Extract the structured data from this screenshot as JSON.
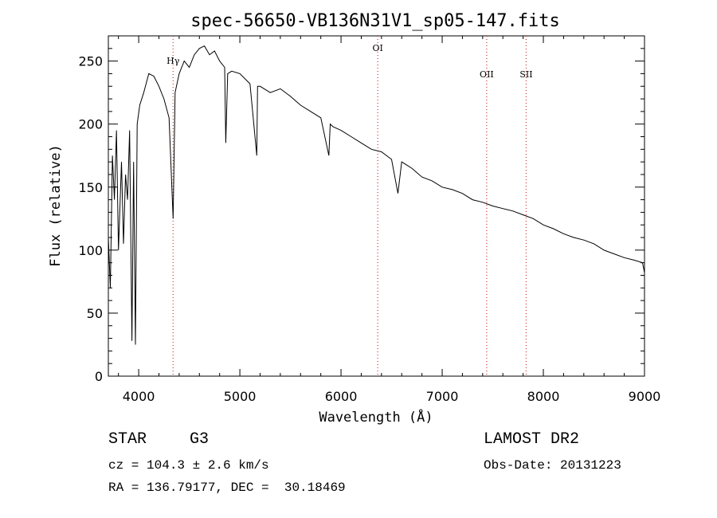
{
  "chart_data": {
    "type": "line",
    "title": "spec-56650-VB136N31V1_sp05-147.fits",
    "xlabel": "Wavelength (Å)",
    "ylabel": "Flux (relative)",
    "xlim": [
      3700,
      9000
    ],
    "ylim": [
      0,
      270
    ],
    "xticks": [
      4000,
      5000,
      6000,
      7000,
      8000,
      9000
    ],
    "yticks": [
      0,
      50,
      100,
      150,
      200,
      250
    ],
    "line_color": "#000000",
    "marker_color": "#cc3333",
    "series": [
      {
        "name": "flux",
        "x": [
          3700,
          3720,
          3740,
          3760,
          3780,
          3800,
          3830,
          3850,
          3870,
          3890,
          3910,
          3933,
          3950,
          3968,
          3985,
          4010,
          4050,
          4100,
          4150,
          4200,
          4250,
          4300,
          4340,
          4360,
          4400,
          4450,
          4500,
          4550,
          4600,
          4650,
          4700,
          4750,
          4800,
          4850,
          4861,
          4880,
          4920,
          5000,
          5100,
          5167,
          5175,
          5200,
          5300,
          5400,
          5500,
          5600,
          5700,
          5800,
          5880,
          5893,
          5920,
          6000,
          6100,
          6200,
          6300,
          6400,
          6500,
          6563,
          6600,
          6700,
          6800,
          6900,
          7000,
          7100,
          7200,
          7300,
          7400,
          7500,
          7600,
          7700,
          7800,
          7900,
          8000,
          8100,
          8200,
          8300,
          8400,
          8500,
          8600,
          8700,
          8800,
          8900,
          8980,
          9000
        ],
        "y": [
          110,
          70,
          175,
          140,
          195,
          100,
          170,
          105,
          160,
          140,
          195,
          28,
          170,
          25,
          200,
          215,
          225,
          240,
          238,
          230,
          220,
          205,
          125,
          225,
          240,
          250,
          245,
          255,
          260,
          262,
          255,
          258,
          250,
          245,
          185,
          240,
          242,
          240,
          232,
          175,
          230,
          230,
          225,
          228,
          222,
          215,
          210,
          205,
          175,
          200,
          198,
          195,
          190,
          185,
          180,
          178,
          172,
          145,
          170,
          165,
          158,
          155,
          150,
          148,
          145,
          140,
          138,
          135,
          133,
          131,
          128,
          125,
          120,
          117,
          113,
          110,
          108,
          105,
          100,
          97,
          94,
          92,
          90,
          82
        ]
      }
    ],
    "markers": [
      {
        "label": "Hγ",
        "x": 4340,
        "label_y": 248
      },
      {
        "label": "OI",
        "x": 6363,
        "label_y": 258
      },
      {
        "label": "OII",
        "x": 7440,
        "label_y": 237
      },
      {
        "label": "SII",
        "x": 7830,
        "label_y": 237
      }
    ]
  },
  "info": {
    "object_class": "STAR",
    "subclass": "G3",
    "release": "LAMOST DR2",
    "cz": "cz = 104.3 ± 2.6 km/s",
    "obs_date": "Obs-Date: 20131223",
    "coords": "RA = 136.79177, DEC =  30.18469"
  }
}
